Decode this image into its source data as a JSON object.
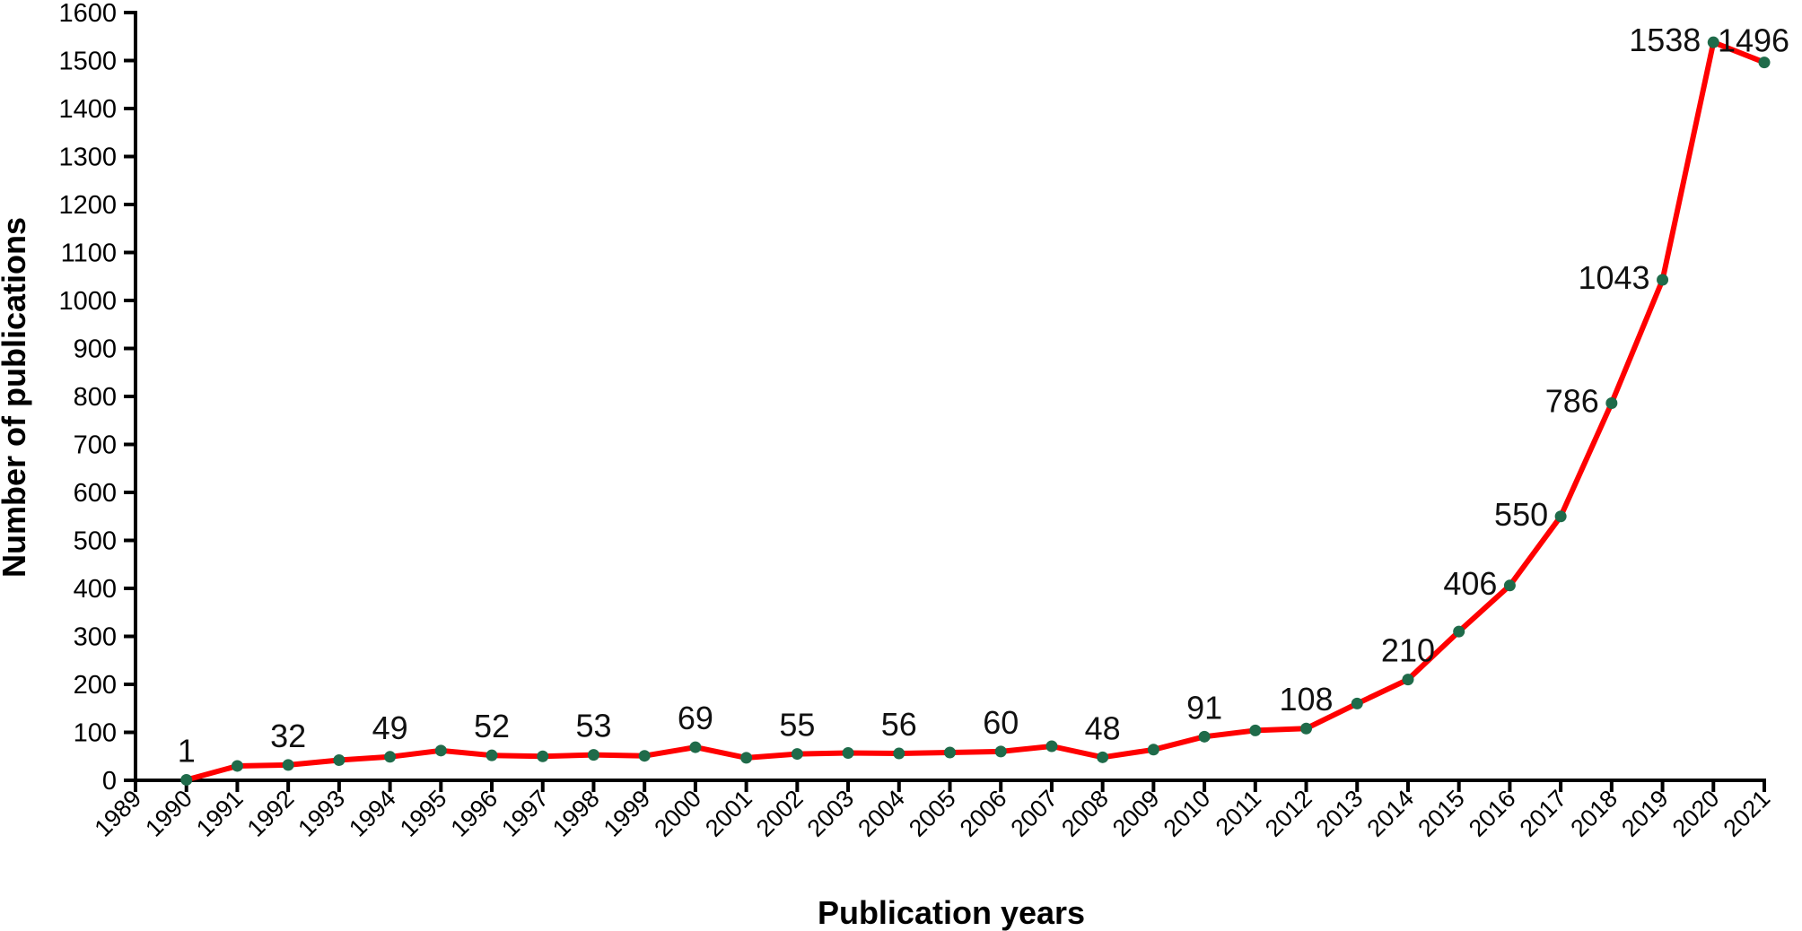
{
  "chart_data": {
    "type": "line",
    "title": "",
    "xlabel": "Publication years",
    "ylabel": "Number of publications",
    "x_ticks": [
      1989,
      1990,
      1991,
      1992,
      1993,
      1994,
      1995,
      1996,
      1997,
      1998,
      1999,
      2000,
      2001,
      2002,
      2003,
      2004,
      2005,
      2006,
      2007,
      2008,
      2009,
      2010,
      2011,
      2012,
      2013,
      2014,
      2015,
      2016,
      2017,
      2018,
      2019,
      2020,
      2021
    ],
    "xlim": [
      1989,
      2021
    ],
    "ylim": [
      0,
      1600
    ],
    "y_ticks": [
      0,
      100,
      200,
      300,
      400,
      500,
      600,
      700,
      800,
      900,
      1000,
      1100,
      1200,
      1300,
      1400,
      1500,
      1600
    ],
    "grid": false,
    "legend": "none",
    "colors": {
      "line": "#ff0000",
      "marker": "#1f6b4a"
    },
    "series": [
      {
        "x": [
          1990,
          1991,
          1992,
          1993,
          1994,
          1995,
          1996,
          1997,
          1998,
          1999,
          2000,
          2001,
          2002,
          2003,
          2004,
          2005,
          2006,
          2007,
          2008,
          2009,
          2010,
          2011,
          2012,
          2013,
          2014,
          2015,
          2016,
          2017,
          2018,
          2019,
          2020,
          2021
        ],
        "values": [
          1,
          30,
          32,
          42,
          49,
          62,
          52,
          50,
          53,
          51,
          69,
          47,
          55,
          57,
          56,
          58,
          60,
          71,
          48,
          64,
          91,
          104,
          108,
          160,
          210,
          310,
          406,
          550,
          786,
          1043,
          1538,
          1496
        ]
      }
    ],
    "data_labels": [
      {
        "x": 1990,
        "y": 1,
        "text": "1"
      },
      {
        "x": 1992,
        "y": 32,
        "text": "32"
      },
      {
        "x": 1994,
        "y": 49,
        "text": "49"
      },
      {
        "x": 1996,
        "y": 52,
        "text": "52"
      },
      {
        "x": 1998,
        "y": 53,
        "text": "53"
      },
      {
        "x": 2000,
        "y": 69,
        "text": "69"
      },
      {
        "x": 2002,
        "y": 55,
        "text": "55"
      },
      {
        "x": 2004,
        "y": 56,
        "text": "56"
      },
      {
        "x": 2006,
        "y": 60,
        "text": "60"
      },
      {
        "x": 2008,
        "y": 48,
        "text": "48"
      },
      {
        "x": 2010,
        "y": 91,
        "text": "91"
      },
      {
        "x": 2012,
        "y": 108,
        "text": "108"
      },
      {
        "x": 2014,
        "y": 210,
        "text": "210"
      },
      {
        "x": 2016,
        "y": 406,
        "text": "406"
      },
      {
        "x": 2017,
        "y": 550,
        "text": "550"
      },
      {
        "x": 2018,
        "y": 786,
        "text": "786"
      },
      {
        "x": 2019,
        "y": 1043,
        "text": "1043"
      },
      {
        "x": 2020,
        "y": 1538,
        "text": "1538"
      },
      {
        "x": 2021,
        "y": 1496,
        "text": "1496"
      }
    ]
  }
}
